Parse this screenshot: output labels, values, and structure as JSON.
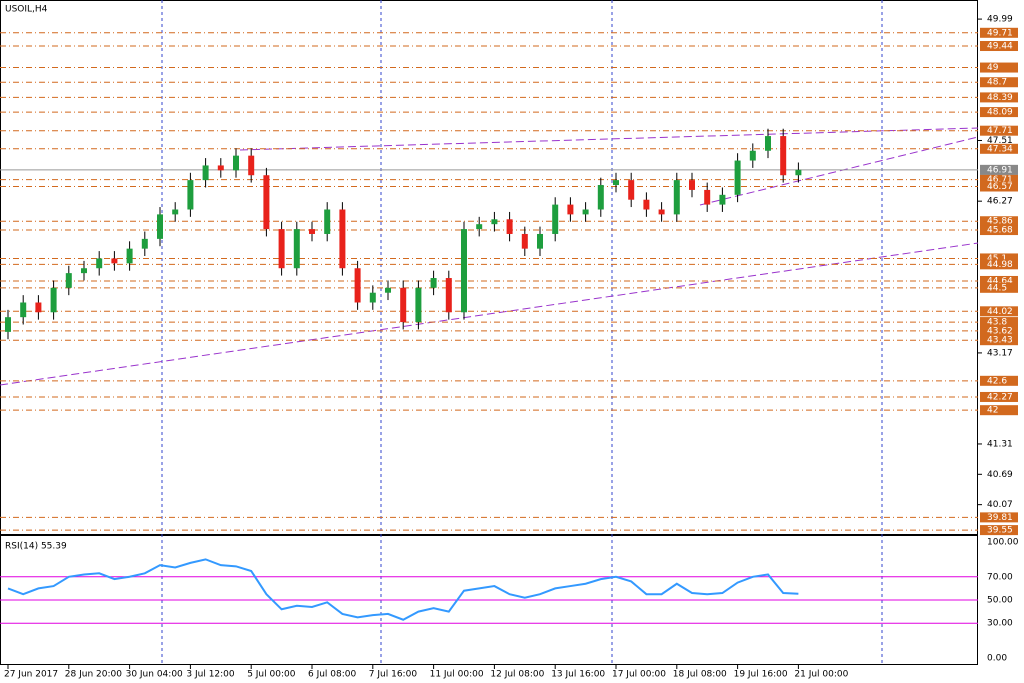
{
  "chart_data": [
    {
      "type": "candlestick",
      "title": "USOIL,H4",
      "open": [
        43.6,
        43.9,
        44.2,
        44.0,
        44.5,
        44.8,
        44.9,
        45.1,
        45.0,
        45.3,
        45.5,
        46.0,
        46.1,
        46.7,
        47.0,
        46.9,
        47.2,
        46.8,
        45.7,
        44.9,
        45.7,
        45.6,
        46.1,
        44.9,
        44.2,
        44.4,
        44.5,
        43.8,
        44.5,
        44.7,
        44.0,
        45.7,
        45.8,
        45.9,
        45.6,
        45.3,
        45.6,
        46.2,
        46.0,
        46.1,
        46.6,
        46.7,
        46.3,
        46.1,
        46.0,
        46.7,
        46.5,
        46.2,
        46.4,
        47.1,
        47.3,
        47.6,
        46.8
      ],
      "high": [
        44.05,
        44.35,
        44.35,
        44.65,
        44.95,
        45.05,
        45.25,
        45.25,
        45.45,
        45.65,
        46.15,
        46.25,
        46.85,
        47.15,
        47.15,
        47.35,
        47.35,
        46.95,
        45.85,
        45.85,
        45.85,
        46.25,
        46.25,
        45.05,
        44.55,
        44.65,
        44.65,
        44.65,
        44.85,
        44.85,
        45.85,
        45.95,
        46.05,
        46.05,
        45.75,
        45.75,
        46.35,
        46.35,
        46.25,
        46.75,
        46.85,
        46.85,
        46.45,
        46.25,
        46.85,
        46.85,
        46.65,
        46.55,
        47.25,
        47.45,
        47.75,
        47.75,
        47.06
      ],
      "low": [
        43.45,
        43.75,
        43.85,
        43.85,
        44.35,
        44.65,
        44.75,
        44.85,
        44.85,
        45.15,
        45.35,
        45.85,
        45.95,
        46.55,
        46.75,
        46.75,
        46.65,
        45.55,
        44.75,
        44.75,
        45.45,
        45.45,
        44.75,
        44.05,
        44.05,
        44.25,
        43.65,
        43.65,
        44.35,
        43.85,
        43.85,
        45.55,
        45.65,
        45.45,
        45.15,
        45.15,
        45.45,
        45.85,
        45.85,
        45.95,
        46.45,
        46.15,
        45.95,
        45.85,
        45.85,
        46.35,
        46.05,
        46.05,
        46.25,
        46.95,
        47.15,
        46.65,
        46.65
      ],
      "close": [
        43.9,
        44.2,
        44.0,
        44.5,
        44.8,
        44.9,
        45.1,
        45.0,
        45.3,
        45.5,
        46.0,
        46.1,
        46.7,
        47.0,
        46.9,
        47.2,
        46.8,
        45.7,
        44.9,
        45.7,
        45.6,
        46.1,
        44.9,
        44.2,
        44.4,
        44.5,
        43.8,
        44.5,
        44.7,
        44.0,
        45.7,
        45.8,
        45.9,
        45.6,
        45.3,
        45.6,
        46.2,
        46.0,
        46.1,
        46.6,
        46.7,
        46.3,
        46.1,
        46.0,
        46.7,
        46.5,
        46.2,
        46.4,
        47.1,
        47.3,
        47.6,
        46.8,
        46.91
      ],
      "up_color": "#1e9e3e",
      "down_color": "#e8221b",
      "xlim": [
        -0.5263,
        63.816
      ],
      "xticks": [
        {
          "value": 0,
          "label": "27 Jun 2017"
        },
        {
          "value": 4,
          "label": "28 Jun 20:00"
        },
        {
          "value": 8,
          "label": "30 Jun 04:00"
        },
        {
          "value": 12,
          "label": "3 Jul 12:00"
        },
        {
          "value": 16,
          "label": "5 Jul 00:00"
        },
        {
          "value": 20,
          "label": "6 Jul 08:00"
        },
        {
          "value": 24,
          "label": "7 Jul 16:00"
        },
        {
          "value": 28,
          "label": "11 Jul 00:00"
        },
        {
          "value": 32,
          "label": "12 Jul 08:00"
        },
        {
          "value": 36,
          "label": "13 Jul 16:00"
        },
        {
          "value": 40,
          "label": "17 Jul 00:00"
        },
        {
          "value": 44,
          "label": "18 Jul 08:00"
        },
        {
          "value": 48,
          "label": "19 Jul 16:00"
        },
        {
          "value": 52,
          "label": "21 Jul 00:00"
        }
      ],
      "ylim": [
        39.45,
        50.38
      ],
      "yticks": [
        49.99,
        47.51,
        46.27,
        43.17,
        41.31,
        40.69,
        40.07
      ],
      "levels": [
        49.71,
        49.44,
        49.0,
        48.7,
        48.39,
        48.09,
        47.71,
        47.34,
        46.71,
        46.57,
        45.86,
        45.68,
        45.1,
        44.98,
        44.64,
        44.5,
        44.02,
        43.8,
        43.62,
        43.43,
        42.6,
        42.27,
        42.0,
        39.81,
        39.55
      ],
      "level_color": "#d2691e",
      "last_price": 46.91
    },
    {
      "type": "line",
      "title": "RSI(14) 55.39",
      "color": "#3399ff",
      "values": [
        60,
        55,
        60,
        62,
        70,
        72,
        73,
        68,
        70,
        73,
        80,
        78,
        82,
        85,
        80,
        79,
        75,
        55,
        42,
        45,
        44,
        48,
        38,
        35,
        37,
        38,
        33,
        40,
        43,
        40,
        58,
        60,
        62,
        55,
        52,
        55,
        60,
        62,
        64,
        68,
        70,
        66,
        55,
        55,
        64,
        56,
        55,
        56,
        65,
        70,
        72,
        56,
        55.39
      ],
      "ylim": [
        -6,
        106
      ],
      "yticks": [
        {
          "value": 100,
          "label": "100.00"
        },
        {
          "value": 70,
          "label": "70.00"
        },
        {
          "value": 50,
          "label": "50.00"
        },
        {
          "value": 30,
          "label": "30.00"
        },
        {
          "value": 0,
          "label": "0.00"
        }
      ],
      "levels": [
        70,
        50,
        30
      ],
      "level_color": "#e000e0"
    }
  ]
}
